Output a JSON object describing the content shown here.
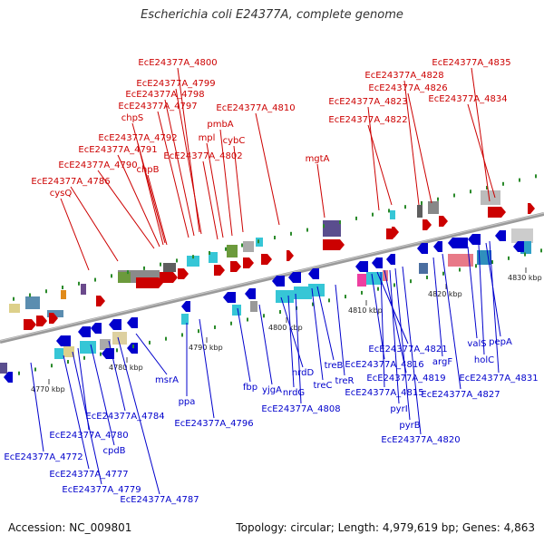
{
  "header": {
    "title": "Escherichia coli E24377A, complete genome"
  },
  "footer": {
    "accession": "Accession: NC_009801",
    "topology": "Topology: circular; Length: 4,979,619 bp; Genes: 4,863"
  },
  "colors": {
    "forward_label": "#cc0000",
    "reverse_label": "#0000cc",
    "backbone": "#999999"
  },
  "ticks": [
    "4770 kbp",
    "4780 kbp",
    "4790 kbp",
    "4800 kbp",
    "4810 kbp",
    "4820 kbp",
    "4830 kbp"
  ],
  "top_labels": [
    "EcE24377A_4800",
    "EcE24377A_4799",
    "EcE24377A_4798",
    "EcE24377A_4797",
    "chpS",
    "EcE24377A_4792",
    "EcE24377A_4791",
    "EcE24377A_4790",
    "chpB",
    "EcE24377A_4786",
    "cysQ",
    "mpl",
    "pmbA",
    "cybC",
    "EcE24377A_4802",
    "EcE24377A_4810",
    "mgtA",
    "EcE24377A_4828",
    "EcE24377A_4826",
    "EcE24377A_4823",
    "EcE24377A_4822",
    "EcE24377A_4835",
    "EcE24377A_4834"
  ],
  "bottom_labels": [
    "EcE24377A_4772",
    "EcE24377A_4777",
    "EcE24377A_4779",
    "EcE24377A_4780",
    "cpdB",
    "EcE24377A_4784",
    "EcE24377A_4787",
    "msrA",
    "ppa",
    "EcE24377A_4796",
    "fbp",
    "yjgA",
    "nrdD",
    "nrdG",
    "EcE24377A_4808",
    "treB",
    "treC",
    "treR",
    "EcE24377A_4821",
    "EcE24377A_4816",
    "EcE24377A_4819",
    "EcE24377A_4815",
    "pyrI",
    "pyrB",
    "EcE24377A_4820",
    "argF",
    "EcE24377A_4827",
    "valS",
    "holC",
    "pepA",
    "EcE24377A_4831"
  ]
}
